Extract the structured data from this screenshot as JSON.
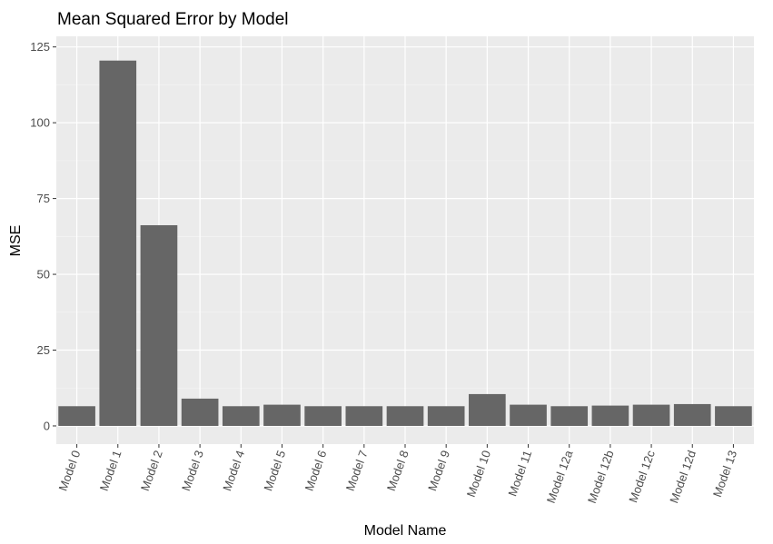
{
  "chart_data": {
    "type": "bar",
    "title": "Mean Squared Error by Model",
    "xlabel": "Model Name",
    "ylabel": "MSE",
    "categories": [
      "Model 0",
      "Model 1",
      "Model 2",
      "Model 3",
      "Model 4",
      "Model 5",
      "Model 6",
      "Model 7",
      "Model 8",
      "Model 9",
      "Model 10",
      "Model 11",
      "Model 12a",
      "Model 12b",
      "Model 12c",
      "Model 12d",
      "Model 13"
    ],
    "values": [
      6.5,
      120.5,
      66.2,
      9.0,
      6.5,
      7.0,
      6.5,
      6.5,
      6.5,
      6.5,
      10.5,
      7.0,
      6.5,
      6.7,
      7.0,
      7.2,
      6.5
    ],
    "yticks": [
      0,
      25,
      50,
      75,
      100,
      125
    ],
    "ylim": [
      -6.0,
      128.5
    ],
    "grid": true,
    "colors": {
      "bar": "#666666",
      "panel": "#ebebeb",
      "grid_major": "#ffffff",
      "grid_minor": "#f5f5f5"
    }
  }
}
